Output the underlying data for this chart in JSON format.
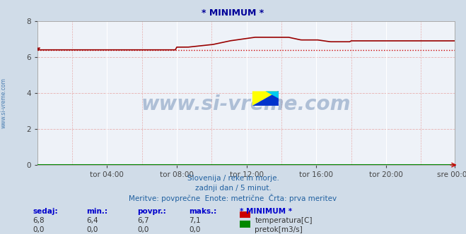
{
  "title": "* MINIMUM *",
  "bg_color": "#d0dce8",
  "plot_bg_color": "#eef2f8",
  "grid_color_solid": "#ffffff",
  "grid_color_dashed": "#e8b0b0",
  "xlabel_ticks": [
    "tor 04:00",
    "tor 08:00",
    "tor 12:00",
    "tor 16:00",
    "tor 20:00",
    "sre 00:00"
  ],
  "ylim": [
    0,
    8
  ],
  "yticks": [
    0,
    2,
    4,
    6,
    8
  ],
  "subtitle1": "Slovenija / reke in morje.",
  "subtitle2": "zadnji dan / 5 minut.",
  "subtitle3": "Meritve: povprečne  Enote: metrične  Črta: prva meritev",
  "table_headers": [
    "sedaj:",
    "min.:",
    "povpr.:",
    "maks.:",
    "* MINIMUM *"
  ],
  "table_row1": [
    "6,8",
    "6,4",
    "6,7",
    "7,1"
  ],
  "table_row2": [
    "0,0",
    "0,0",
    "0,0",
    "0,0"
  ],
  "legend_temp_color": "#cc0000",
  "legend_flow_color": "#008800",
  "legend_temp_label": "temperatura[C]",
  "legend_flow_label": "pretok[m3/s]",
  "watermark": "www.si-vreme.com",
  "watermark_color": "#1a4a8a",
  "watermark_alpha": 0.3,
  "sidebar_text": "www.si-vreme.com",
  "sidebar_color": "#2060a0",
  "temp_line_color": "#990000",
  "min_line_color": "#cc0000",
  "min_line_value": 6.4,
  "flow_line_color": "#008800",
  "num_points": 288,
  "title_color": "#000099",
  "subtitle_color": "#2060a0",
  "header_color": "#0000cc",
  "text_color": "#333333"
}
